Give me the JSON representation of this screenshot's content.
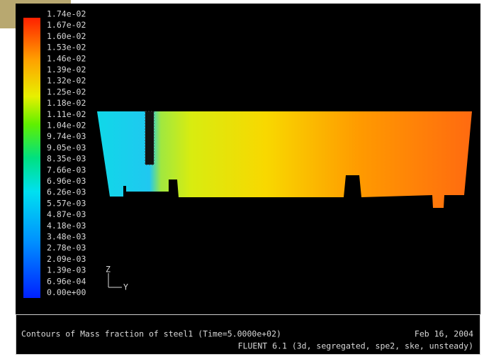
{
  "colorbar": {
    "labels": [
      "1.74e-02",
      "1.67e-02",
      "1.60e-02",
      "1.53e-02",
      "1.46e-02",
      "1.39e-02",
      "1.32e-02",
      "1.25e-02",
      "1.18e-02",
      "1.11e-02",
      "1.04e-02",
      "9.74e-03",
      "9.05e-03",
      "8.35e-03",
      "7.66e-03",
      "6.96e-03",
      "6.26e-03",
      "5.57e-03",
      "4.87e-03",
      "4.18e-03",
      "3.48e-03",
      "2.78e-03",
      "2.09e-03",
      "1.39e-03",
      "6.96e-04",
      "0.00e+00"
    ]
  },
  "axes": {
    "z": "Z",
    "y": "Y"
  },
  "footer": {
    "title": "Contours of Mass fraction of steel1  (Time=5.0000e+02)",
    "date": "Feb 16, 2004",
    "version": "FLUENT 6.1 (3d, segregated, spe2, ske, unsteady)"
  }
}
